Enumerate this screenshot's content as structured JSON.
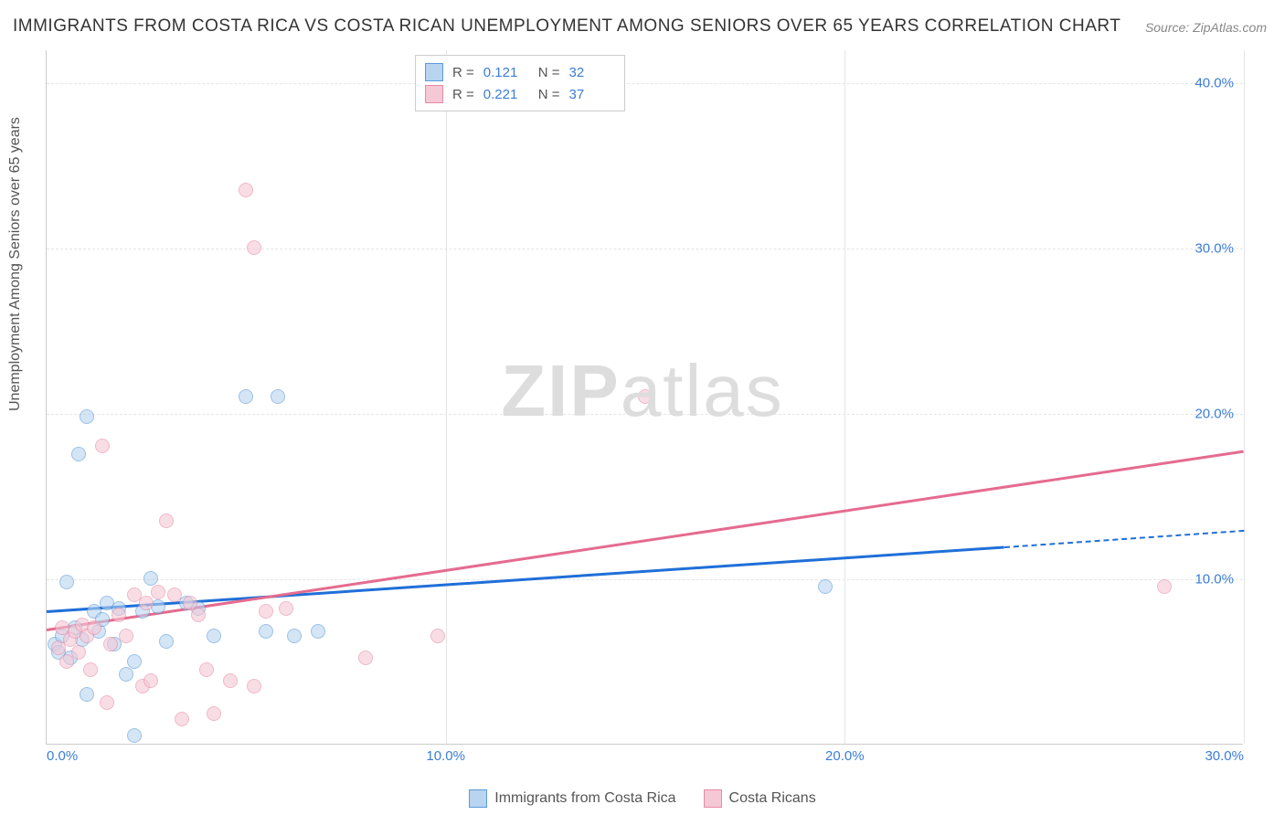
{
  "title": "IMMIGRANTS FROM COSTA RICA VS COSTA RICAN UNEMPLOYMENT AMONG SENIORS OVER 65 YEARS CORRELATION CHART",
  "source": "Source: ZipAtlas.com",
  "ylabel": "Unemployment Among Seniors over 65 years",
  "watermark_bold": "ZIP",
  "watermark_light": "atlas",
  "chart": {
    "type": "scatter",
    "xlim": [
      0,
      30
    ],
    "ylim": [
      0,
      42
    ],
    "xticks": [
      0,
      10,
      20,
      30
    ],
    "xtick_labels": [
      "0.0%",
      "10.0%",
      "20.0%",
      "30.0%"
    ],
    "yticks": [
      10,
      20,
      30,
      40
    ],
    "ytick_labels": [
      "10.0%",
      "20.0%",
      "30.0%",
      "40.0%"
    ],
    "grid_color": "#e5e5e5",
    "background_color": "#ffffff",
    "axis_color": "#cccccc",
    "tick_font_color": "#3b7dd8",
    "marker_radius": 8,
    "marker_stroke_width": 1.5,
    "series": [
      {
        "name": "Immigrants from Costa Rica",
        "fill": "#b8d4f0",
        "stroke": "#5a9ad8",
        "fill_opacity": 0.6,
        "R": "0.121",
        "N": "32",
        "trend": {
          "x0": 0,
          "y0": 8.1,
          "x1": 24,
          "y1": 12.0,
          "color": "#1f6fd8",
          "dashed_x1": 30,
          "dashed_y1": 13.0
        },
        "points": [
          [
            0.2,
            6.0
          ],
          [
            0.3,
            5.5
          ],
          [
            0.4,
            6.5
          ],
          [
            0.5,
            9.8
          ],
          [
            0.6,
            5.2
          ],
          [
            0.7,
            7.0
          ],
          [
            0.8,
            17.5
          ],
          [
            1.0,
            19.8
          ],
          [
            1.0,
            3.0
          ],
          [
            1.2,
            8.0
          ],
          [
            1.3,
            6.8
          ],
          [
            1.5,
            8.5
          ],
          [
            1.7,
            6.0
          ],
          [
            1.8,
            8.2
          ],
          [
            2.0,
            4.2
          ],
          [
            2.2,
            5.0
          ],
          [
            2.4,
            8.0
          ],
          [
            2.6,
            10.0
          ],
          [
            2.8,
            8.3
          ],
          [
            3.0,
            6.2
          ],
          [
            3.5,
            8.5
          ],
          [
            3.8,
            8.2
          ],
          [
            4.2,
            6.5
          ],
          [
            5.0,
            21.0
          ],
          [
            5.5,
            6.8
          ],
          [
            5.8,
            21.0
          ],
          [
            6.2,
            6.5
          ],
          [
            6.8,
            6.8
          ],
          [
            2.2,
            0.5
          ],
          [
            0.9,
            6.3
          ],
          [
            1.4,
            7.5
          ],
          [
            19.5,
            9.5
          ]
        ]
      },
      {
        "name": "Costa Ricans",
        "fill": "#f5c8d5",
        "stroke": "#e88aa5",
        "fill_opacity": 0.6,
        "R": "0.221",
        "N": "37",
        "trend": {
          "x0": 0,
          "y0": 7.0,
          "x1": 30,
          "y1": 17.8,
          "color": "#e56b8f"
        },
        "points": [
          [
            0.3,
            5.8
          ],
          [
            0.4,
            7.0
          ],
          [
            0.5,
            5.0
          ],
          [
            0.6,
            6.3
          ],
          [
            0.7,
            6.8
          ],
          [
            0.8,
            5.5
          ],
          [
            0.9,
            7.2
          ],
          [
            1.0,
            6.5
          ],
          [
            1.1,
            4.5
          ],
          [
            1.2,
            7.0
          ],
          [
            1.4,
            18.0
          ],
          [
            1.5,
            2.5
          ],
          [
            1.6,
            6.0
          ],
          [
            1.8,
            7.8
          ],
          [
            2.0,
            6.5
          ],
          [
            2.2,
            9.0
          ],
          [
            2.4,
            3.5
          ],
          [
            2.6,
            3.8
          ],
          [
            2.8,
            9.2
          ],
          [
            3.0,
            13.5
          ],
          [
            3.2,
            9.0
          ],
          [
            3.4,
            1.5
          ],
          [
            3.6,
            8.5
          ],
          [
            3.8,
            7.8
          ],
          [
            4.0,
            4.5
          ],
          [
            4.2,
            1.8
          ],
          [
            4.6,
            3.8
          ],
          [
            5.0,
            33.5
          ],
          [
            5.2,
            30.0
          ],
          [
            5.2,
            3.5
          ],
          [
            5.5,
            8.0
          ],
          [
            6.0,
            8.2
          ],
          [
            8.0,
            5.2
          ],
          [
            9.8,
            6.5
          ],
          [
            15.0,
            21.0
          ],
          [
            28.0,
            9.5
          ],
          [
            2.5,
            8.5
          ]
        ]
      }
    ]
  },
  "legend_top": {
    "r_label": "R =",
    "n_label": "N ="
  },
  "legend_bottom": [
    {
      "label": "Immigrants from Costa Rica",
      "fill": "#b8d4f0",
      "stroke": "#5a9ad8"
    },
    {
      "label": "Costa Ricans",
      "fill": "#f5c8d5",
      "stroke": "#e88aa5"
    }
  ]
}
